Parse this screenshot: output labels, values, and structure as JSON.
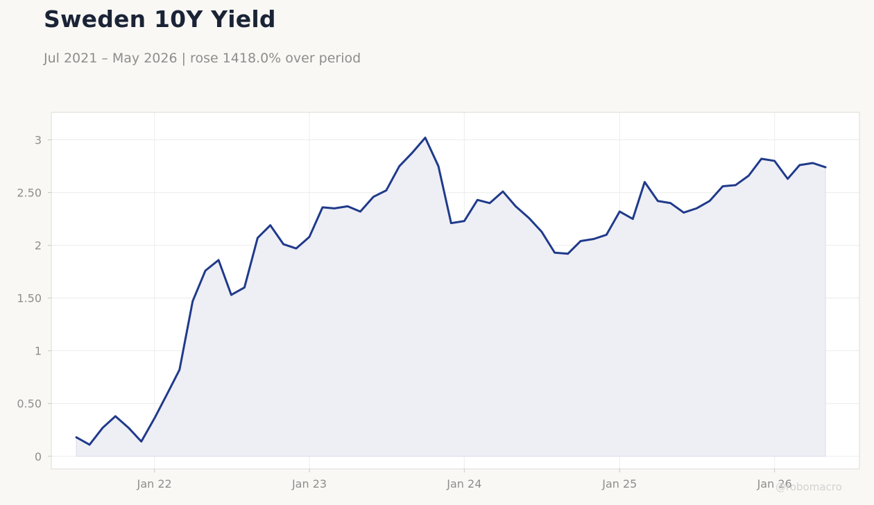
{
  "title": "Sweden 10Y Yield",
  "subtitle": "Jul 2021 – May 2026 | rose 1418.0% over period",
  "watermark": "@robomacro",
  "colors": {
    "line": "#1f3a8a",
    "fill": "#eeeef5",
    "grid": "#ececec",
    "plot_bg": "#ffffff",
    "page_bg": "#f9f8f5",
    "axis_text": "#8d8d8d"
  },
  "chart_data": {
    "type": "area",
    "title": "Sweden 10Y Yield",
    "subtitle": "Jul 2021 – May 2026 | rose 1418.0% over period",
    "xlabel": "",
    "ylabel": "",
    "xlim": [
      "2021-05-03",
      "2026-07-20"
    ],
    "ylim": [
      -0.12,
      3.26
    ],
    "grid": true,
    "legend": "none",
    "x_ticks": [
      {
        "date": "2022-01-01",
        "label": "Jan 22"
      },
      {
        "date": "2023-01-01",
        "label": "Jan 23"
      },
      {
        "date": "2024-01-01",
        "label": "Jan 24"
      },
      {
        "date": "2025-01-01",
        "label": "Jan 25"
      },
      {
        "date": "2026-01-01",
        "label": "Jan 26"
      }
    ],
    "y_ticks": [
      {
        "value": 0,
        "label": "0"
      },
      {
        "value": 0.5,
        "label": "0.50"
      },
      {
        "value": 1,
        "label": "1"
      },
      {
        "value": 1.5,
        "label": "1.50"
      },
      {
        "value": 2,
        "label": "2"
      },
      {
        "value": 2.5,
        "label": "2.50"
      },
      {
        "value": 3,
        "label": "3"
      }
    ],
    "series": [
      {
        "x": [
          "2021-07-01",
          "2021-08-01",
          "2021-09-01",
          "2021-10-01",
          "2021-11-01",
          "2021-12-01",
          "2022-01-01",
          "2022-02-01",
          "2022-03-01",
          "2022-04-01",
          "2022-05-01",
          "2022-06-01",
          "2022-07-01",
          "2022-08-01",
          "2022-09-01",
          "2022-10-01",
          "2022-11-01",
          "2022-12-01",
          "2023-01-01",
          "2023-02-01",
          "2023-03-01",
          "2023-04-01",
          "2023-05-01",
          "2023-06-01",
          "2023-07-01",
          "2023-08-01",
          "2023-09-01",
          "2023-10-01",
          "2023-11-01",
          "2023-12-01",
          "2024-01-01",
          "2024-02-01",
          "2024-03-01",
          "2024-04-01",
          "2024-05-01",
          "2024-06-01",
          "2024-07-01",
          "2024-08-01",
          "2024-09-01",
          "2024-10-01",
          "2024-11-01",
          "2024-12-01",
          "2025-01-01",
          "2025-02-01",
          "2025-03-01",
          "2025-04-01",
          "2025-05-01",
          "2025-06-01",
          "2025-07-01",
          "2025-08-01",
          "2025-09-01",
          "2025-10-01",
          "2025-11-01",
          "2025-12-01",
          "2026-01-01",
          "2026-02-01",
          "2026-03-01",
          "2026-04-01",
          "2026-05-01"
        ],
        "y": [
          0.18,
          0.11,
          0.27,
          0.38,
          0.27,
          0.14,
          0.36,
          0.6,
          0.82,
          1.47,
          1.76,
          1.86,
          1.53,
          1.6,
          2.07,
          2.19,
          2.01,
          1.97,
          2.08,
          2.36,
          2.35,
          2.37,
          2.32,
          2.46,
          2.52,
          2.75,
          2.88,
          3.02,
          2.75,
          2.21,
          2.23,
          2.43,
          2.4,
          2.51,
          2.37,
          2.26,
          2.13,
          1.93,
          1.92,
          2.04,
          2.06,
          2.1,
          2.32,
          2.25,
          2.6,
          2.42,
          2.4,
          2.31,
          2.35,
          2.42,
          2.56,
          2.57,
          2.66,
          2.82,
          2.8,
          2.63,
          2.76,
          2.78,
          2.74
        ]
      }
    ]
  }
}
